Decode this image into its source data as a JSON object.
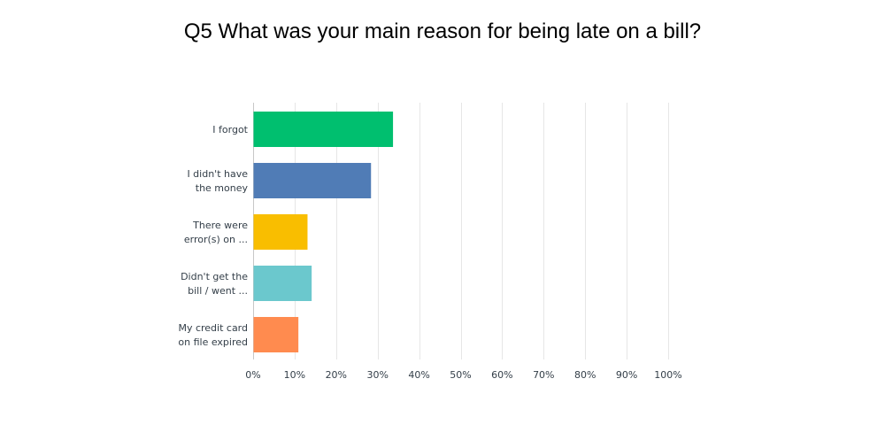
{
  "chart_data": {
    "type": "bar",
    "orientation": "horizontal",
    "title": "Q5 What was your main reason for being late on a bill?",
    "categories": [
      [
        "I forgot"
      ],
      [
        "I didn't have",
        "the money"
      ],
      [
        "There were",
        "error(s) on ..."
      ],
      [
        "Didn't get the",
        "bill / went ..."
      ],
      [
        "My credit card",
        "on file expired"
      ]
    ],
    "values": [
      33.6,
      28.3,
      13.0,
      14.0,
      10.8
    ],
    "colors": [
      "#00bf6f",
      "#507cb6",
      "#f9be00",
      "#6bc8cd",
      "#ff8b4f"
    ],
    "xlim": [
      0,
      100
    ],
    "x_ticks": [
      "0%",
      "10%",
      "20%",
      "30%",
      "40%",
      "50%",
      "60%",
      "70%",
      "80%",
      "90%",
      "100%"
    ],
    "grid": true
  }
}
